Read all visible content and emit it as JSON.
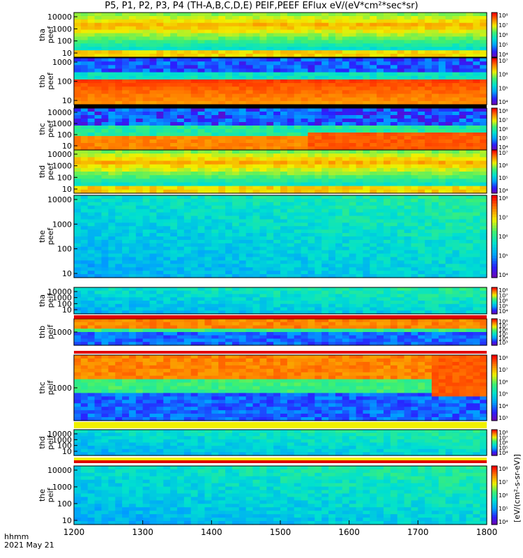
{
  "title": "P5, P1, P2, P3, P4 (TH-A,B,C,D,E) PEIF,PEEF EFlux eV/(eV*cm²*sec*sr)",
  "footer": {
    "time_label": "hhmm",
    "date_label": "2021 May 21"
  },
  "colorbar_unit_label": "[eV/(cm²-s-sr-eV)]",
  "colormap": [
    "#7a00a8",
    "#2a20ff",
    "#00a0ff",
    "#00e0d0",
    "#40f070",
    "#f0f000",
    "#ff8000",
    "#ff0000"
  ],
  "chart_data": {
    "type": "heatmap",
    "x_label": "",
    "x_ticks": [
      "1200",
      "1300",
      "1400",
      "1500",
      "1600",
      "1700",
      "1800"
    ],
    "x_range": [
      1200,
      1800
    ],
    "panels": [
      {
        "name": "tha peef",
        "y_label": [
          "tha",
          "peef"
        ],
        "y_ticks": [
          "10000",
          "1000",
          "100",
          "10"
        ],
        "cbar_ticks": [
          "10⁸",
          "10⁷",
          "10⁶",
          "10⁵",
          "10⁴"
        ],
        "pattern": "hot_e"
      },
      {
        "name": "thb peef",
        "y_label": [
          "thb",
          "peef"
        ],
        "y_ticks": [
          "1000",
          "100",
          "10"
        ],
        "cbar_ticks": [
          "10⁷",
          "10⁶",
          "10⁵",
          "10⁴"
        ],
        "pattern": "hot_low"
      },
      {
        "name": "thc peef",
        "y_label": [
          "thc",
          "peef"
        ],
        "y_ticks": [
          "10000",
          "1000",
          "100",
          "10"
        ],
        "cbar_ticks": [
          "10⁸",
          "10⁷",
          "10⁶",
          "10⁵",
          "10⁴"
        ],
        "pattern": "hot_low_c"
      },
      {
        "name": "thd peef",
        "y_label": [
          "thd",
          "peef"
        ],
        "y_ticks": [
          "10000",
          "1000",
          "100",
          "10"
        ],
        "cbar_ticks": [
          "10⁷",
          "10⁶",
          "10⁵",
          "10⁴"
        ],
        "pattern": "hot_e"
      },
      {
        "name": "the peef",
        "y_label": [
          "the",
          "peef"
        ],
        "y_ticks": [
          "10000",
          "1000",
          "100",
          "10"
        ],
        "cbar_ticks": [
          "10⁸",
          "10⁷",
          "10⁶",
          "10⁵",
          "10⁴"
        ],
        "pattern": "cool"
      },
      {
        "name": "tha peif",
        "y_label": [
          "tha",
          "peif"
        ],
        "y_ticks": [
          "10000",
          "1000",
          "100",
          "10"
        ],
        "cbar_ticks": [
          "10⁸",
          "10⁷",
          "10⁶",
          "10⁵",
          "10⁴"
        ],
        "pattern": "cool"
      },
      {
        "name": "thb peif",
        "y_label": [
          "thb",
          "peif"
        ],
        "y_ticks": [
          "1000"
        ],
        "cbar_ticks": [
          "10⁸",
          "10⁷",
          "10⁶",
          "10⁵",
          "10⁴",
          "10³"
        ],
        "pattern": "ion_band"
      },
      {
        "name": "thc peif",
        "y_label": [
          "thc",
          "peif"
        ],
        "y_ticks": [
          "1000"
        ],
        "cbar_ticks": [
          "10⁸",
          "10⁷",
          "10⁶",
          "10⁵",
          "10⁴",
          "10³"
        ],
        "pattern": "ion_band_c"
      },
      {
        "name": "thd peif",
        "y_label": [
          "thd",
          "peif"
        ],
        "y_ticks": [
          "10000",
          "1000",
          "100",
          "10"
        ],
        "cbar_ticks": [
          "10⁸",
          "10⁷",
          "10⁶",
          "10⁵",
          "10⁴"
        ],
        "pattern": "cool"
      },
      {
        "name": "the peif",
        "y_label": [
          "the",
          "peif"
        ],
        "y_ticks": [
          "10000",
          "1000",
          "100",
          "10"
        ],
        "cbar_ticks": [
          "10⁸",
          "10⁷",
          "10⁶",
          "10⁵",
          "10⁴"
        ],
        "pattern": "cool"
      }
    ]
  }
}
